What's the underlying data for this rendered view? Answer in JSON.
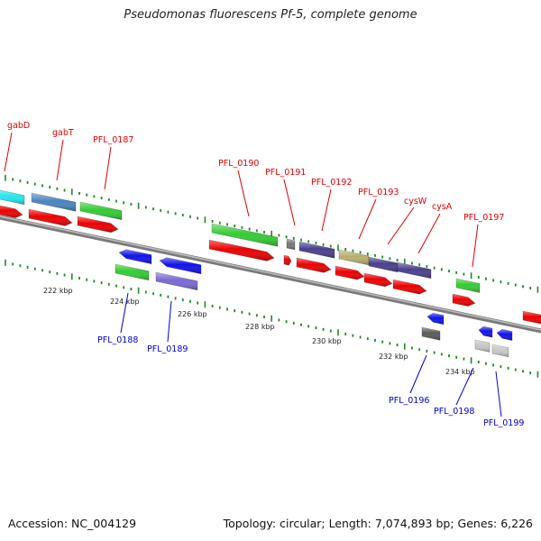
{
  "title": "Pseudomonas fluorescens Pf-5, complete genome",
  "footer": {
    "accession": "Accession: NC_004129",
    "topology": "Topology: circular; Length: 7,074,893 bp; Genes: 6,226"
  },
  "colors": {
    "forward_label": "#dd0000",
    "reverse_label": "#0000cc",
    "tick": "#228822",
    "backbone": "#888888"
  },
  "ruler": {
    "labels": [
      "222 kbp",
      "224 kbp",
      "226 kbp",
      "228 kbp",
      "230 kbp",
      "232 kbp",
      "234 kbp"
    ]
  },
  "gene_labels": {
    "forward": [
      "gabD",
      "gabT",
      "PFL_0187",
      "PFL_0190",
      "PFL_0191",
      "PFL_0192",
      "PFL_0193",
      "cysW",
      "cysA",
      "PFL_0197"
    ],
    "reverse": [
      "PFL_0188",
      "PFL_0189",
      "PFL_0196",
      "PFL_0198",
      "PFL_0199"
    ]
  }
}
